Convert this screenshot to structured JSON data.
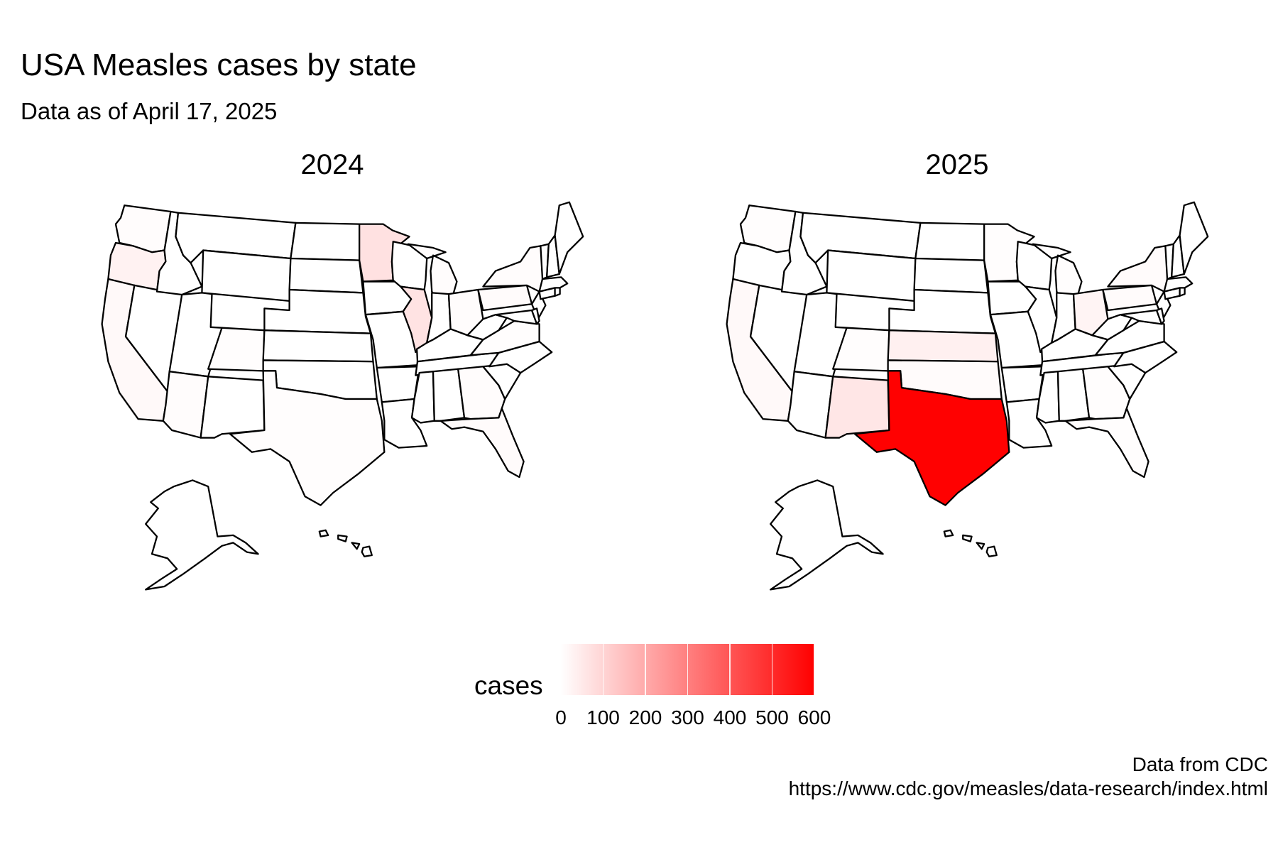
{
  "title": "USA Measles cases by state",
  "subtitle": "Data as of April 17, 2025",
  "panels": [
    {
      "year_label": "2024",
      "state_cases": {
        "California": 15,
        "Oregon": 30,
        "Washington": 8,
        "Arizona": 8,
        "Minnesota": 70,
        "Illinois": 65,
        "Ohio": 8,
        "Pennsylvania": 10,
        "Florida": 10,
        "Georgia": 8,
        "Michigan": 8,
        "New York": 8,
        "Texas": 5,
        "Colorado": 5,
        "Virginia": 5,
        "Alaska": 0,
        "Hawaii": 0
      }
    },
    {
      "year_label": "2025",
      "state_cases": {
        "Texas": 597,
        "New Mexico": 60,
        "Kansas": 35,
        "Ohio": 25,
        "California": 15,
        "Pennsylvania": 10,
        "Washington": 5,
        "Georgia": 5,
        "Florida": 5,
        "New York": 10,
        "Michigan": 5,
        "Minnesota": 5,
        "Oklahoma": 10,
        "Colorado": 5,
        "Alaska": 0,
        "Hawaii": 0
      }
    }
  ],
  "legend": {
    "title": "cases",
    "min": 0,
    "max": 600,
    "ticks": [
      "0",
      "100",
      "200",
      "300",
      "400",
      "500",
      "600"
    ],
    "low_color": "#ffffff",
    "high_color": "#ff0000"
  },
  "caption": {
    "source": "Data from CDC",
    "url": "https://www.cdc.gov/measles/data-research/index.html"
  }
}
